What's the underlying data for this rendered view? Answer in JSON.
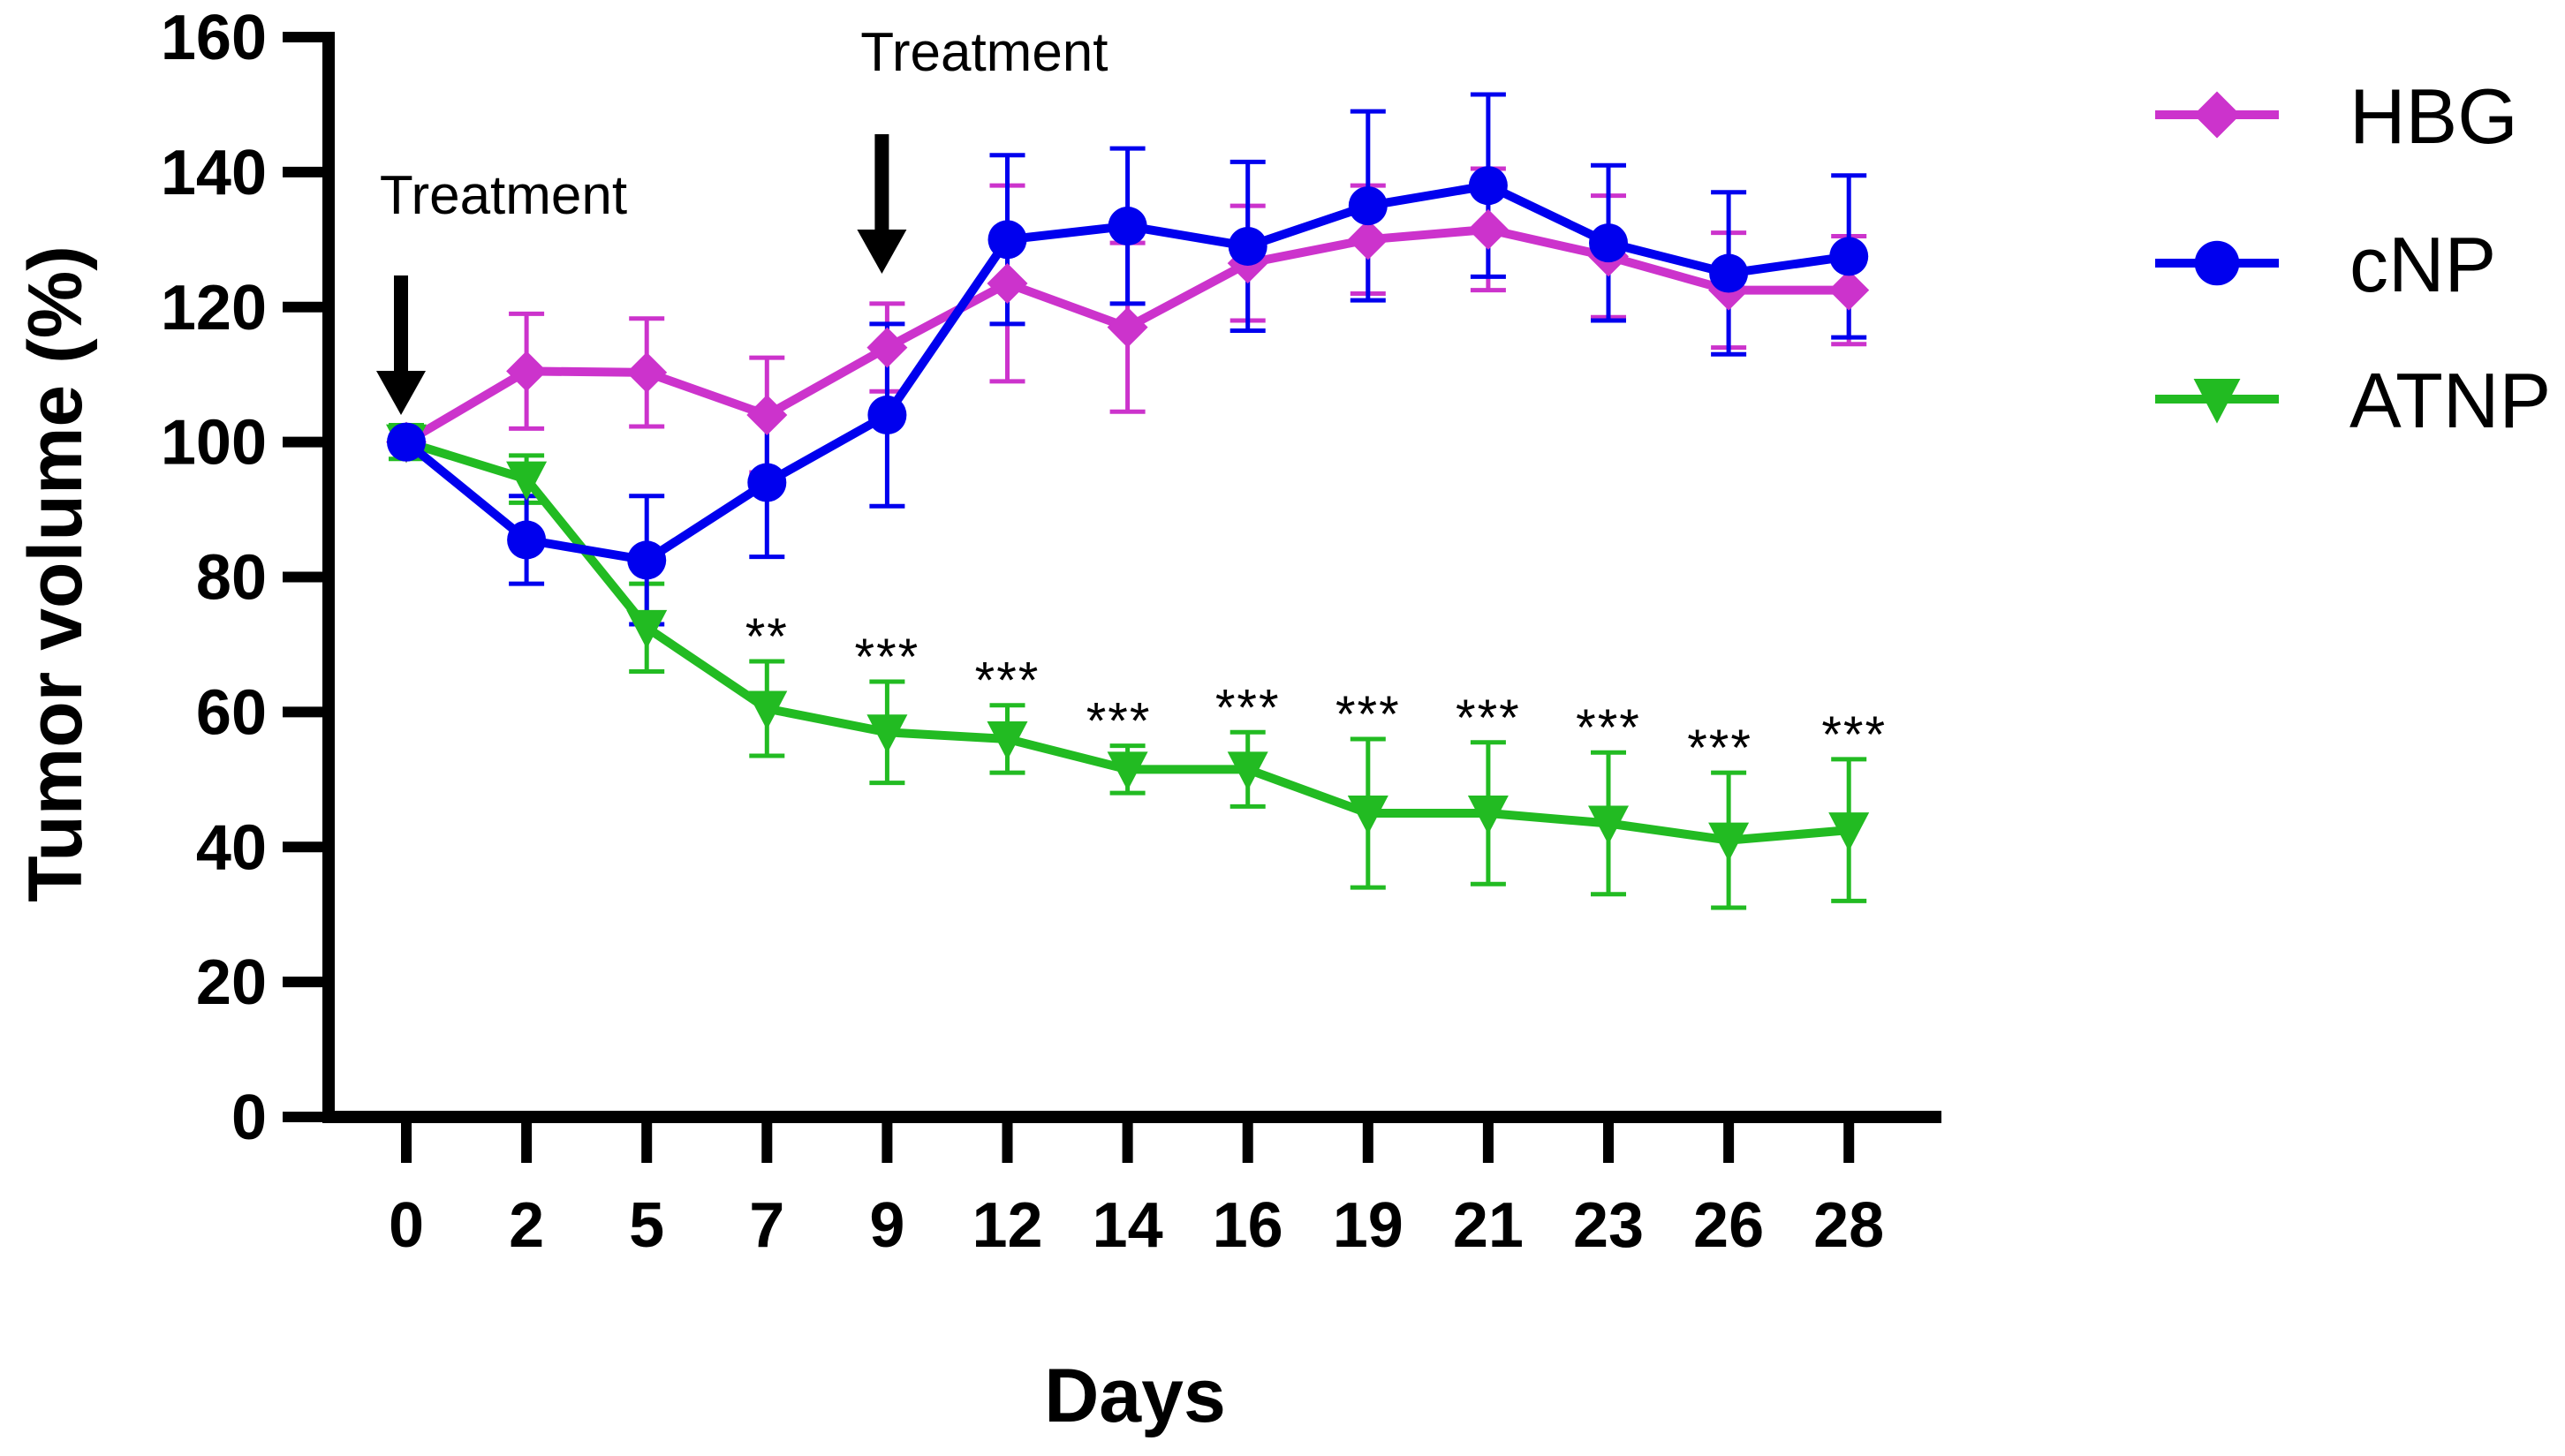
{
  "chart_data": {
    "type": "line",
    "title": "",
    "xlabel": "Days",
    "ylabel": "Tumor volume (%)",
    "categories": [
      "0",
      "2",
      "5",
      "7",
      "9",
      "12",
      "14",
      "16",
      "19",
      "21",
      "23",
      "26",
      "28"
    ],
    "ylim": [
      0,
      160
    ],
    "yticks": [
      0,
      20,
      40,
      60,
      80,
      100,
      120,
      140,
      160
    ],
    "legend_position": "right",
    "series": [
      {
        "name": "HBG",
        "color": "#cc33cc",
        "marker": "diamond",
        "values": [
          100,
          110.5,
          110.3,
          104,
          114,
          123.5,
          117,
          126.5,
          130,
          131.5,
          127.5,
          122.5,
          122.5
        ],
        "errors": [
          0,
          8.5,
          8,
          8.5,
          6.5,
          14.5,
          12.5,
          8.5,
          8,
          9,
          9,
          8.5,
          8
        ]
      },
      {
        "name": "cNP",
        "color": "#0000ee",
        "marker": "circle",
        "values": [
          100,
          85.5,
          82.5,
          94,
          104,
          130,
          132,
          129,
          135,
          138,
          129.5,
          125,
          127.5
        ],
        "errors": [
          0,
          6.5,
          9.5,
          11,
          13.5,
          12.5,
          11.5,
          12.5,
          14,
          13.5,
          11.5,
          12,
          12
        ]
      },
      {
        "name": "ATNP",
        "color": "#22bb22",
        "marker": "triangle-down",
        "values": [
          100,
          94.5,
          72.5,
          60.5,
          57,
          56,
          51.5,
          51.5,
          45,
          45,
          43.5,
          41,
          42.5
        ],
        "errors": [
          2.5,
          3.5,
          6.5,
          7,
          7.5,
          5,
          3.5,
          5.5,
          11,
          10.5,
          10.5,
          10,
          10.5
        ]
      }
    ],
    "significance": [
      {
        "x": "7",
        "label": "**"
      },
      {
        "x": "9",
        "label": "***"
      },
      {
        "x": "12",
        "label": "***"
      },
      {
        "x": "14",
        "label": "***"
      },
      {
        "x": "16",
        "label": "***"
      },
      {
        "x": "19",
        "label": "***"
      },
      {
        "x": "21",
        "label": "***"
      },
      {
        "x": "23",
        "label": "***"
      },
      {
        "x": "26",
        "label": "***"
      },
      {
        "x": "28",
        "label": "***"
      }
    ],
    "annotations": [
      {
        "text": "Treatment",
        "x": "0"
      },
      {
        "text": "Treatment",
        "x": "9"
      }
    ]
  }
}
